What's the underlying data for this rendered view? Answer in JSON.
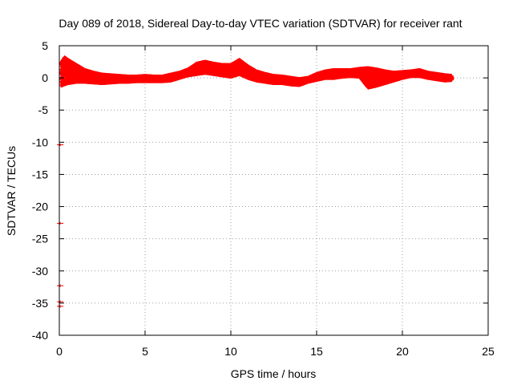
{
  "chart_data": {
    "type": "scatter",
    "title": "Day 089 of 2018, Sidereal Day-to-day VTEC variation (SDTVAR) for receiver rant",
    "xlabel": "GPS time / hours",
    "ylabel": "SDTVAR / TECUs",
    "xlim": [
      0,
      25
    ],
    "ylim": [
      -40,
      5
    ],
    "xticks": [
      0,
      5,
      10,
      15,
      20,
      25
    ],
    "xtick_labels": [
      "0",
      "5",
      "10",
      "15",
      "20",
      "25"
    ],
    "yticks": [
      5,
      0,
      -5,
      -10,
      -15,
      -20,
      -25,
      -30,
      -35,
      -40
    ],
    "ytick_labels": [
      "5",
      "0",
      "-5",
      "-10",
      "-15",
      "-20",
      "-25",
      "-30",
      "-35",
      "-40"
    ],
    "grid": true,
    "marker": "plus",
    "series_color": "#ff0000",
    "band": {
      "x": [
        0.1,
        0.3,
        0.5,
        1.0,
        1.5,
        2.0,
        2.5,
        3.0,
        3.5,
        4.0,
        4.5,
        5.0,
        5.5,
        6.0,
        6.5,
        7.0,
        7.5,
        8.0,
        8.5,
        9.0,
        9.5,
        10.0,
        10.5,
        11.0,
        11.5,
        12.0,
        12.5,
        13.0,
        13.5,
        14.0,
        14.5,
        15.0,
        15.5,
        16.0,
        16.5,
        17.0,
        17.5,
        18.0,
        18.5,
        19.0,
        19.5,
        20.0,
        20.5,
        21.0,
        21.5,
        22.0,
        22.5,
        22.9
      ],
      "upper": [
        2.3,
        3.2,
        2.8,
        2.0,
        1.2,
        0.8,
        0.5,
        0.4,
        0.3,
        0.2,
        0.2,
        0.3,
        0.2,
        0.2,
        0.5,
        0.8,
        1.3,
        2.2,
        2.5,
        2.2,
        2.0,
        2.0,
        2.8,
        1.8,
        1.0,
        0.6,
        0.3,
        0.2,
        0.0,
        -0.2,
        0.0,
        0.6,
        1.0,
        1.2,
        1.2,
        1.2,
        1.4,
        1.5,
        1.3,
        1.0,
        0.8,
        0.9,
        1.0,
        1.2,
        0.8,
        0.6,
        0.4,
        0.3
      ],
      "lower": [
        -1.2,
        -1.0,
        -0.8,
        -0.6,
        -0.6,
        -0.7,
        -0.8,
        -0.7,
        -0.6,
        -0.6,
        -0.5,
        -0.5,
        -0.5,
        -0.5,
        -0.4,
        0.0,
        0.4,
        0.6,
        0.8,
        0.6,
        0.4,
        0.2,
        0.6,
        0.0,
        -0.4,
        -0.6,
        -0.8,
        -0.8,
        -1.0,
        -1.1,
        -0.6,
        -0.3,
        0.0,
        0.0,
        0.2,
        0.3,
        0.2,
        -1.5,
        -1.2,
        -0.8,
        -0.4,
        0.0,
        0.3,
        0.3,
        0.0,
        -0.2,
        -0.4,
        -0.3
      ]
    },
    "outliers": [
      {
        "x": 0.05,
        "y": -10.4
      },
      {
        "x": 0.05,
        "y": -22.6
      },
      {
        "x": 0.05,
        "y": -32.3
      },
      {
        "x": 0.05,
        "y": -34.8
      },
      {
        "x": 0.05,
        "y": -35.5
      }
    ]
  }
}
